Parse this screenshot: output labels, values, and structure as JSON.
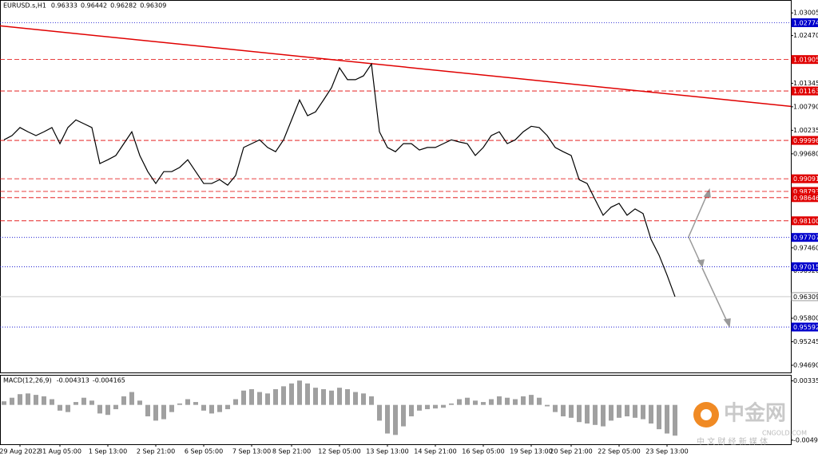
{
  "chart_data": [
    {
      "type": "line",
      "title": "EURUSD.s,H1",
      "ohlc": [
        0.96333,
        0.96442,
        0.96282,
        0.96309
      ],
      "color": "#000000",
      "categories": [
        null,
        null,
        "29 Aug 2022",
        null,
        null,
        null,
        null,
        "31 Aug 05:00",
        null,
        null,
        null,
        null,
        null,
        "1 Sep 13:00",
        null,
        null,
        null,
        null,
        null,
        "2 Sep 21:00",
        null,
        null,
        null,
        null,
        null,
        "6 Sep 05:00",
        null,
        null,
        null,
        null,
        null,
        "7 Sep 13:00",
        null,
        null,
        null,
        null,
        "8 Sep 21:00",
        null,
        null,
        null,
        null,
        null,
        "12 Sep 05:00",
        null,
        null,
        null,
        null,
        null,
        "13 Sep 13:00",
        null,
        null,
        null,
        null,
        null,
        "14 Sep 21:00",
        null,
        null,
        null,
        null,
        null,
        "16 Sep 05:00",
        null,
        null,
        null,
        null,
        null,
        "19 Sep 13:00",
        null,
        null,
        null,
        null,
        "20 Sep 21:00",
        null,
        null,
        null,
        null,
        null,
        "22 Sep 05:00",
        null,
        null,
        null,
        null,
        null,
        "23 Sep 13:00",
        null
      ],
      "values": [
        1.0001,
        1.0011,
        1.003,
        1.002,
        1.0011,
        1.002,
        1.003,
        0.9992,
        1.003,
        1.0048,
        1.0039,
        1.003,
        0.9945,
        0.9954,
        0.9964,
        0.9992,
        1.002,
        0.9964,
        0.9926,
        0.9898,
        0.9926,
        0.9926,
        0.9936,
        0.9954,
        0.9926,
        0.9898,
        0.9898,
        0.9907,
        0.9894,
        0.9917,
        0.9983,
        0.9992,
        1.0001,
        0.9983,
        0.9973,
        1.0001,
        1.0048,
        1.0095,
        1.0058,
        1.0067,
        1.0095,
        1.0124,
        1.0171,
        1.0143,
        1.0143,
        1.0152,
        1.018,
        1.002,
        0.9983,
        0.9973,
        0.9992,
        0.9992,
        0.9977,
        0.9983,
        0.9983,
        0.9992,
        1.0001,
        0.9996,
        0.9992,
        0.9964,
        0.9983,
        1.0011,
        1.002,
        0.9992,
        1.0001,
        1.002,
        1.0033,
        1.003,
        1.0011,
        0.9983,
        0.9973,
        0.9964,
        0.9907,
        0.9898,
        0.986,
        0.9823,
        0.9842,
        0.9851,
        0.9823,
        0.9838,
        0.9827,
        0.9766,
        0.9729,
        0.9682,
        0.9631
      ],
      "ylim": [
        0.9452,
        1.0331
      ],
      "yticks": [
        1.03005,
        {
          "value": 1.0247,
          "label": "1.02470"
        },
        1.01345,
        {
          "value": 1.0079,
          "label": "1.00790"
        },
        1.00235,
        {
          "value": 0.9968,
          "label": "0.99680"
        },
        {
          "value": 0.9746,
          "label": "0.97460"
        },
        {
          "value": 0.9692,
          "label": "0.96920"
        },
        {
          "value": 0.958,
          "label": "0.95800"
        },
        0.95245,
        {
          "value": 0.9469,
          "label": "0.94690"
        }
      ],
      "trendline": {
        "color": "#e00000",
        "values": [
          1.027,
          1.008
        ]
      },
      "levels": [
        {
          "value": 1.02774,
          "color": "#0000cc",
          "style": "dotted"
        },
        {
          "value": 1.01905,
          "color": "#e00000",
          "style": "dashed"
        },
        {
          "value": 1.01163,
          "color": "#e00000",
          "style": "dashed"
        },
        {
          "value": 0.99996,
          "color": "#e00000",
          "style": "dashed"
        },
        {
          "value": 0.99091,
          "color": "#e00000",
          "style": "dashed"
        },
        {
          "value": 0.98793,
          "color": "#e00000",
          "style": "dashed"
        },
        {
          "value": 0.98646,
          "color": "#e00000",
          "style": "dashed"
        },
        {
          "value": 0.981,
          "label": "0.98100",
          "color": "#e00000",
          "style": "dashed"
        },
        {
          "value": 0.97707,
          "color": "#0000cc",
          "style": "dotted"
        },
        {
          "value": 0.97015,
          "color": "#0000cc",
          "style": "dotted"
        },
        {
          "value": 0.96309,
          "color": "#c0c0c0",
          "style": "solid"
        },
        {
          "value": 0.95592,
          "color": "#0000cc",
          "style": "dotted"
        }
      ]
    },
    {
      "type": "bar",
      "title": "MACD(12,26,9)",
      "indicator_values": [
        -0.004313,
        -0.004165
      ],
      "color": "#a0a0a0",
      "values": [
        0.0005,
        0.001,
        0.0015,
        0.0016,
        0.0014,
        0.0012,
        0.0008,
        -0.0008,
        -0.001,
        0.0004,
        0.001,
        0.0006,
        -0.0012,
        -0.0014,
        -0.0006,
        0.0012,
        0.0018,
        0.0006,
        -0.0016,
        -0.0022,
        -0.002,
        -0.001,
        0.0002,
        0.0008,
        0.0004,
        -0.0008,
        -0.0012,
        -0.001,
        -0.0006,
        0.0008,
        0.002,
        0.0022,
        0.0018,
        0.0016,
        0.0022,
        0.0026,
        0.003,
        0.0034,
        0.003,
        0.0024,
        0.0022,
        0.002,
        0.0024,
        0.0022,
        0.0018,
        0.0016,
        0.0012,
        -0.0022,
        -0.004,
        -0.0042,
        -0.003,
        -0.0016,
        -0.0008,
        -0.0006,
        -0.0005,
        -0.0004,
        0.0002,
        0.0008,
        0.001,
        0.0006,
        0.0004,
        0.0008,
        0.0012,
        0.001,
        0.0008,
        0.0012,
        0.0014,
        0.001,
        -0.0002,
        -0.001,
        -0.0016,
        -0.0018,
        -0.0024,
        -0.0026,
        -0.0028,
        -0.003,
        -0.0022,
        -0.0018,
        -0.0016,
        -0.0018,
        -0.002,
        -0.0026,
        -0.0034,
        -0.004,
        -0.0043
      ],
      "ylim": [
        -0.0055,
        0.0042
      ],
      "yticks": [
        0.003359,
        -0.004928
      ]
    }
  ],
  "watermark": {
    "name": "中金网",
    "site": "CNGOLD.COM",
    "slogan": "中 文 财 经 新 媒 体"
  }
}
